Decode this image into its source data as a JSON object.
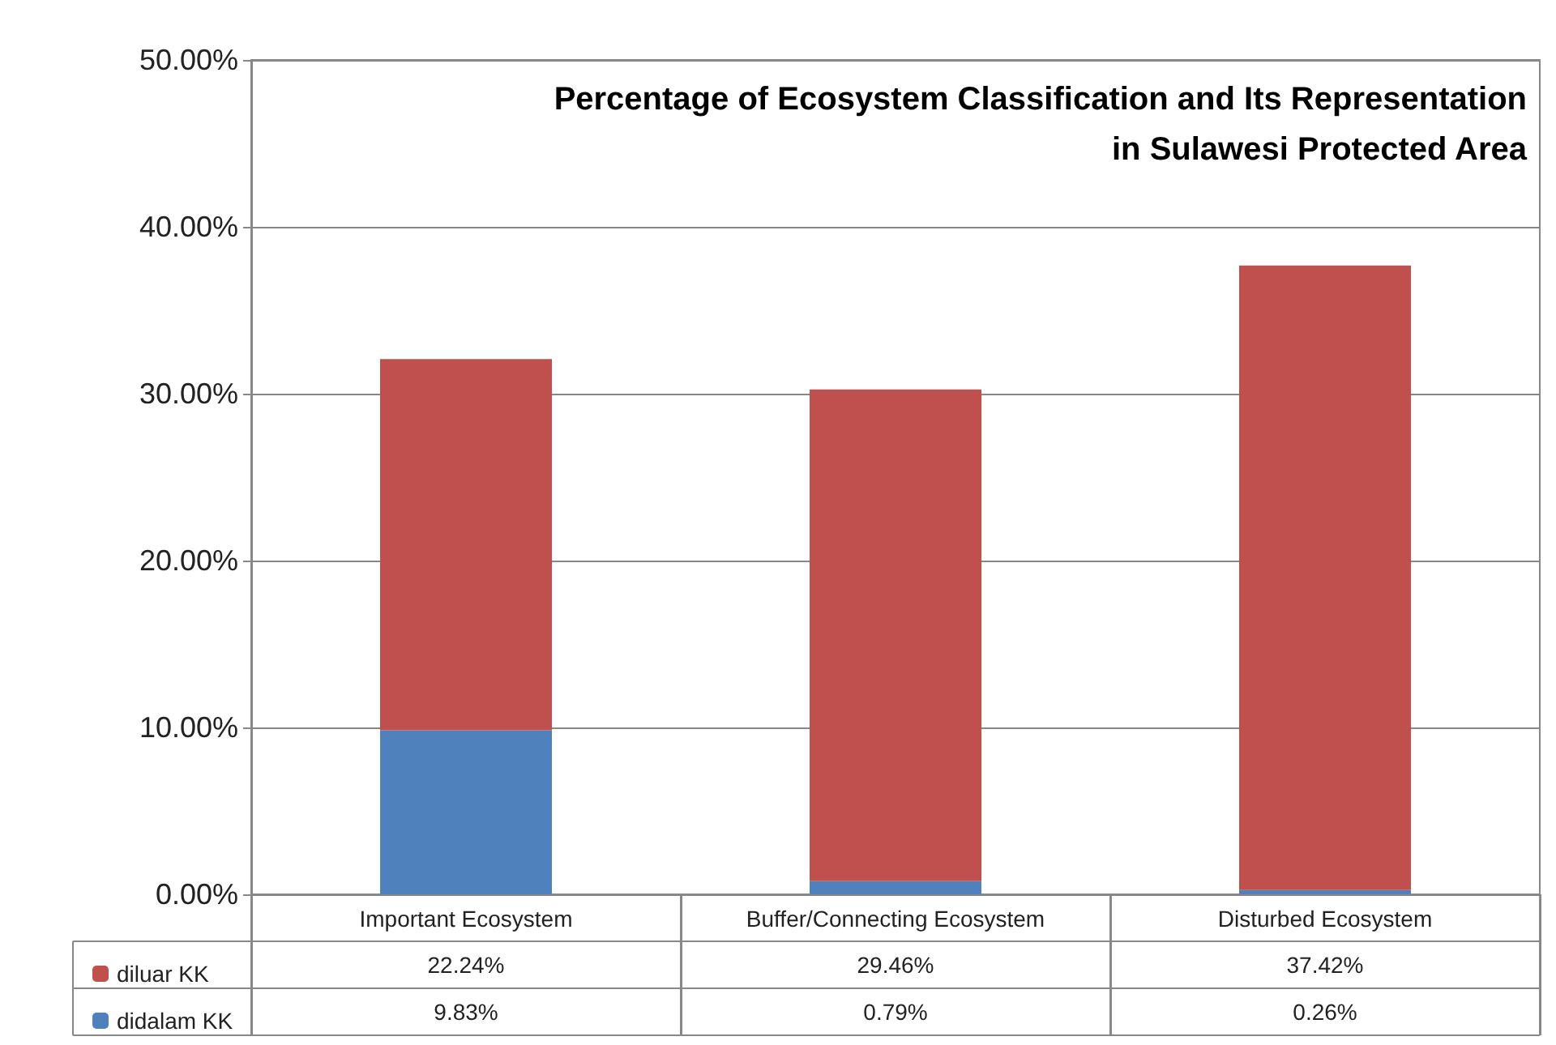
{
  "chart_data": {
    "type": "bar",
    "title": "Percentage of Ecosystem Classification and Its Representation\nin Sulawesi Protected Area",
    "categories": [
      "Important Ecosystem",
      "Buffer/Connecting Ecosystem",
      "Disturbed Ecosystem"
    ],
    "stacked": true,
    "series": [
      {
        "name": "didalam KK",
        "color": "#4f81bd",
        "values": [
          9.83,
          0.79,
          0.26
        ],
        "value_labels": [
          "9.83%",
          "0.79%",
          "0.26%"
        ]
      },
      {
        "name": "diluar KK",
        "color": "#c0504d",
        "values": [
          22.24,
          29.46,
          37.42
        ],
        "value_labels": [
          "22.24%",
          "29.46%",
          "37.42%"
        ]
      }
    ],
    "ylim": [
      0,
      50
    ],
    "yticks": [
      {
        "value": 0,
        "label": "0.00%"
      },
      {
        "value": 10,
        "label": "10.00%"
      },
      {
        "value": 20,
        "label": "20.00%"
      },
      {
        "value": 30,
        "label": "30.00%"
      },
      {
        "value": 40,
        "label": "40.00%"
      },
      {
        "value": 50,
        "label": "50.00%"
      }
    ],
    "grid": "y",
    "legend": "bottom"
  }
}
